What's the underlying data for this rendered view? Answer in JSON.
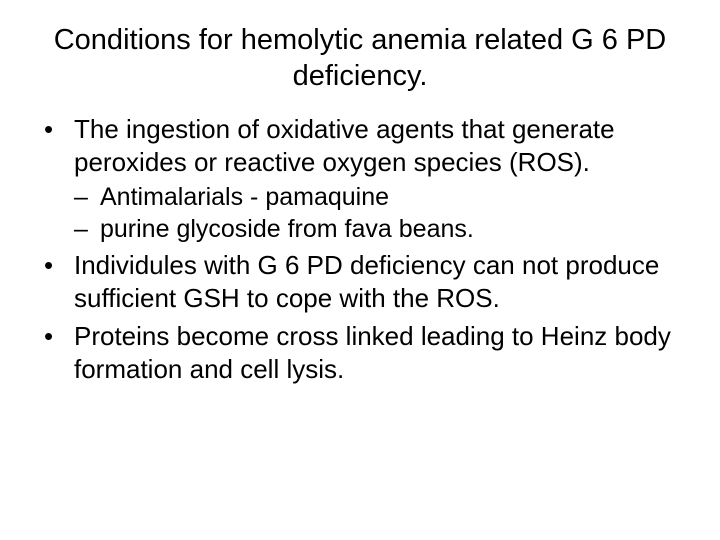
{
  "slide": {
    "title": "Conditions for hemolytic anemia related G 6 PD deficiency.",
    "title_fontsize": 29,
    "body_fontsize": 26,
    "sub_fontsize": 25,
    "text_color": "#000000",
    "background_color": "#ffffff",
    "font_family": "Verdana",
    "bullets": [
      {
        "text": "The ingestion of oxidative agents that generate peroxides or reactive oxygen species (ROS).",
        "sub": [
          {
            "text": "Antimalarials - pamaquine"
          },
          {
            "text": "purine glycoside from fava beans."
          }
        ]
      },
      {
        "text": "Individules with G 6 PD deficiency can not produce sufficient GSH to cope with the ROS.",
        "sub": []
      },
      {
        "text": "Proteins become cross linked leading to Heinz body formation and cell lysis.",
        "sub": []
      }
    ]
  }
}
